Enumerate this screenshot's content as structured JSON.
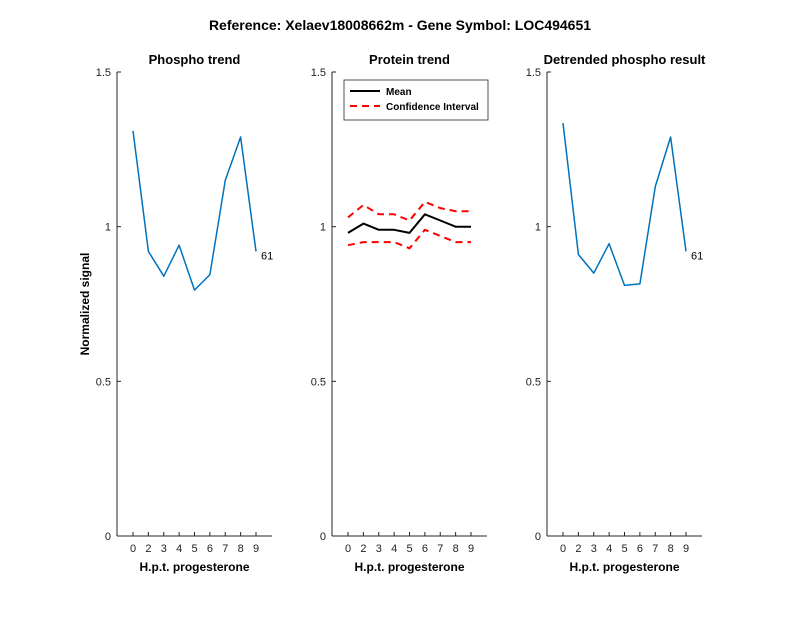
{
  "suptitle": "Reference:  Xelaev18008662m - Gene Symbol:  LOC494651",
  "chart_data": [
    {
      "type": "line",
      "title": "Phospho trend",
      "xlabel": "H.p.t. progesterone",
      "ylabel": "Normalized signal",
      "categories": [
        "0",
        "2",
        "3",
        "4",
        "5",
        "6",
        "7",
        "8",
        "9"
      ],
      "ylim": [
        0,
        1.5
      ],
      "yticks": [
        "0",
        "0.5",
        "1",
        "1.5"
      ],
      "series": [
        {
          "values": [
            1.31,
            0.92,
            0.84,
            0.94,
            0.795,
            0.845,
            1.15,
            1.29,
            0.92
          ],
          "color": "#0072BD",
          "style": "solid"
        }
      ],
      "end_label": "61"
    },
    {
      "type": "line",
      "title": "Protein trend",
      "xlabel": "H.p.t. progesterone",
      "ylabel": "",
      "categories": [
        "0",
        "2",
        "3",
        "4",
        "5",
        "6",
        "7",
        "8",
        "9"
      ],
      "ylim": [
        0,
        1.5
      ],
      "yticks": [
        "0",
        "0.5",
        "1",
        "1.5"
      ],
      "legend_position": "top-left",
      "series": [
        {
          "name": "Mean",
          "values": [
            0.98,
            1.01,
            0.99,
            0.99,
            0.98,
            1.04,
            1.02,
            1.0,
            1.0
          ],
          "color": "#000000",
          "style": "solid"
        },
        {
          "name": "Confidence Interval",
          "values": [
            1.03,
            1.07,
            1.04,
            1.04,
            1.02,
            1.08,
            1.06,
            1.05,
            1.05
          ],
          "color": "#FF0000",
          "style": "dashed"
        },
        {
          "values": [
            0.94,
            0.95,
            0.95,
            0.95,
            0.93,
            0.99,
            0.97,
            0.95,
            0.95
          ],
          "color": "#FF0000",
          "style": "dashed"
        }
      ]
    },
    {
      "type": "line",
      "title": "Detrended phospho result",
      "xlabel": "H.p.t. progesterone",
      "ylabel": "",
      "categories": [
        "0",
        "2",
        "3",
        "4",
        "5",
        "6",
        "7",
        "8",
        "9"
      ],
      "ylim": [
        0,
        1.5
      ],
      "yticks": [
        "0",
        "0.5",
        "1",
        "1.5"
      ],
      "series": [
        {
          "values": [
            1.335,
            0.91,
            0.85,
            0.945,
            0.81,
            0.815,
            1.13,
            1.29,
            0.92
          ],
          "color": "#0072BD",
          "style": "solid"
        }
      ],
      "end_label": "61"
    }
  ]
}
